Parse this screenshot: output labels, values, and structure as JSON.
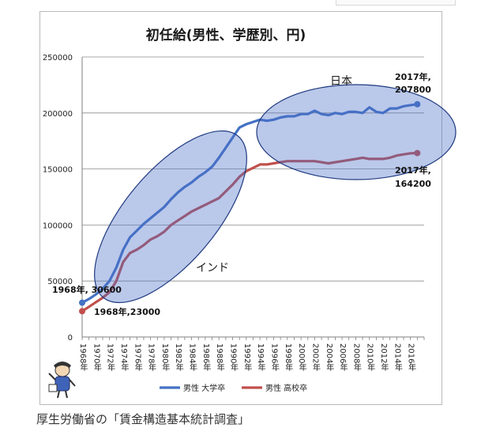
{
  "chart_data": {
    "type": "line",
    "title": "初任給(男性、学歴別、円)",
    "ylim": [
      0,
      250000
    ],
    "yticks": [
      0,
      50000,
      100000,
      150000,
      200000,
      250000
    ],
    "ytick_labels": [
      "0",
      "50000",
      "100000",
      "150000",
      "200000",
      "250000"
    ],
    "x": [
      1968,
      1969,
      1970,
      1971,
      1972,
      1973,
      1974,
      1975,
      1976,
      1977,
      1978,
      1979,
      1980,
      1981,
      1982,
      1983,
      1984,
      1985,
      1986,
      1987,
      1988,
      1989,
      1990,
      1991,
      1992,
      1993,
      1994,
      1995,
      1996,
      1997,
      1998,
      1999,
      2000,
      2001,
      2002,
      2003,
      2004,
      2005,
      2006,
      2007,
      2008,
      2009,
      2010,
      2011,
      2012,
      2013,
      2014,
      2015,
      2016,
      2017
    ],
    "xtick_labels": [
      "1968年",
      "1970年",
      "1972年",
      "1974年",
      "1976年",
      "1978年",
      "1980年",
      "1982年",
      "1984年",
      "1986年",
      "1988年",
      "1990年",
      "1992年",
      "1994年",
      "1996年",
      "1998年",
      "2000年",
      "2002年",
      "2004年",
      "2006年",
      "2008年",
      "2010年",
      "2012年",
      "2014年",
      "2016年"
    ],
    "series": [
      {
        "name": "男性 大学卒",
        "color": "#4472c4",
        "values": [
          30600,
          34000,
          38000,
          43000,
          50000,
          62000,
          78000,
          89000,
          95000,
          101000,
          106000,
          111000,
          116000,
          123000,
          129000,
          134000,
          138000,
          143000,
          147000,
          152000,
          160000,
          169000,
          178000,
          187000,
          190000,
          192000,
          194000,
          193000,
          194000,
          196000,
          197000,
          197000,
          199000,
          199000,
          202000,
          199000,
          198000,
          200000,
          199000,
          201000,
          201000,
          200000,
          205000,
          201000,
          200000,
          204000,
          204000,
          206000,
          207000,
          207800
        ]
      },
      {
        "name": "男性 高校卒",
        "color": "#c0504d",
        "values": [
          23000,
          27000,
          31000,
          35000,
          40000,
          50000,
          67000,
          75000,
          78000,
          82000,
          87000,
          90000,
          94000,
          100000,
          104000,
          108000,
          112000,
          115000,
          118000,
          121000,
          124000,
          130000,
          136000,
          143000,
          148000,
          151000,
          154000,
          154000,
          155000,
          156000,
          157000,
          157000,
          157000,
          157000,
          157000,
          156000,
          155000,
          156000,
          157000,
          158000,
          159000,
          160000,
          159000,
          159000,
          159000,
          160000,
          162000,
          163000,
          164000,
          164200
        ]
      }
    ],
    "legend_position": "bottom",
    "annotations": {
      "start_daigaku": "1968年, 30600",
      "start_koukou": "1968年,23000",
      "end_daigaku_line1": "2017年,",
      "end_daigaku_line2": "207800",
      "end_koukou_line1": "2017年,",
      "end_koukou_line2": "164200",
      "region_japan": "日本",
      "region_india": "インド"
    }
  },
  "source_note": "厚生労働省の「賃金構造基本統計調査」"
}
